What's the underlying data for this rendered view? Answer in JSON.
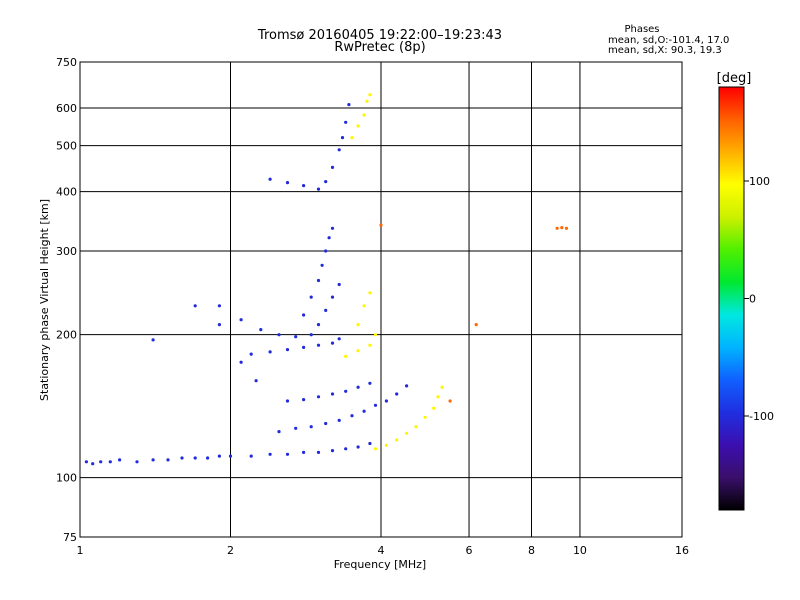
{
  "chart_data": {
    "type": "scatter",
    "title": "Tromsø 20160405 19:22:00–19:23:43",
    "subtitle": "RwPretec (8p)",
    "xlabel": "Frequency [MHz]",
    "ylabel": "Stationary phase Virtual Height [km]",
    "x_scale": "log",
    "y_scale": "log",
    "xlim": [
      1,
      16
    ],
    "ylim": [
      75,
      750
    ],
    "x_ticks": [
      1,
      2,
      4,
      6,
      8,
      10,
      16
    ],
    "y_ticks": [
      75,
      100,
      200,
      300,
      400,
      500,
      600,
      750
    ],
    "grid": true,
    "phase_info": {
      "heading": "Phases",
      "line_o": "mean, sd,O:-101.4, 17.0",
      "line_x": "mean, sd,X:  90.3, 19.3"
    },
    "colorbar": {
      "label": "[deg]",
      "range": [
        -180,
        180
      ],
      "ticks": [
        100,
        0,
        -100
      ],
      "colormap": [
        "#000000",
        "#3a0f6b",
        "#3b0fb0",
        "#1f2fe0",
        "#1060ff",
        "#00b4ff",
        "#00e8e0",
        "#00e830",
        "#50f000",
        "#ccf000",
        "#ffff00",
        "#ffb000",
        "#ff6000",
        "#ff0000"
      ]
    },
    "series": [
      {
        "trace": "o-mode",
        "phase_deg": -100,
        "points": [
          [
            1.03,
            108
          ],
          [
            1.06,
            107
          ],
          [
            1.1,
            108
          ],
          [
            1.15,
            108
          ],
          [
            1.2,
            109
          ],
          [
            1.3,
            108
          ],
          [
            1.4,
            109
          ],
          [
            1.5,
            109
          ],
          [
            1.6,
            110
          ],
          [
            1.7,
            110
          ],
          [
            1.8,
            110
          ],
          [
            1.9,
            111
          ],
          [
            2.0,
            111
          ],
          [
            2.2,
            111
          ],
          [
            2.4,
            112
          ],
          [
            2.6,
            112
          ],
          [
            2.8,
            113
          ],
          [
            3.0,
            113
          ],
          [
            3.2,
            114
          ],
          [
            3.4,
            115
          ],
          [
            3.6,
            116
          ],
          [
            3.8,
            118
          ],
          [
            2.5,
            125
          ],
          [
            2.7,
            127
          ],
          [
            2.9,
            128
          ],
          [
            3.1,
            130
          ],
          [
            3.3,
            132
          ],
          [
            3.5,
            135
          ],
          [
            3.7,
            138
          ],
          [
            3.9,
            142
          ],
          [
            4.1,
            145
          ],
          [
            4.3,
            150
          ],
          [
            4.5,
            156
          ],
          [
            2.6,
            145
          ],
          [
            2.8,
            146
          ],
          [
            3.0,
            148
          ],
          [
            3.2,
            150
          ],
          [
            3.4,
            152
          ],
          [
            3.6,
            155
          ],
          [
            3.8,
            158
          ],
          [
            2.2,
            182
          ],
          [
            2.4,
            184
          ],
          [
            2.6,
            186
          ],
          [
            2.8,
            188
          ],
          [
            3.0,
            190
          ],
          [
            3.2,
            192
          ],
          [
            3.3,
            196
          ],
          [
            1.9,
            230
          ],
          [
            2.1,
            215
          ],
          [
            2.3,
            205
          ],
          [
            2.5,
            200
          ],
          [
            2.7,
            198
          ],
          [
            2.8,
            220
          ],
          [
            2.9,
            240
          ],
          [
            3.0,
            260
          ],
          [
            3.05,
            280
          ],
          [
            3.1,
            300
          ],
          [
            3.15,
            320
          ],
          [
            3.2,
            335
          ],
          [
            2.9,
            200
          ],
          [
            3.0,
            210
          ],
          [
            3.1,
            225
          ],
          [
            3.2,
            240
          ],
          [
            3.3,
            255
          ],
          [
            2.4,
            425
          ],
          [
            2.6,
            418
          ],
          [
            2.8,
            412
          ],
          [
            3.0,
            405
          ],
          [
            3.1,
            420
          ],
          [
            3.2,
            450
          ],
          [
            3.3,
            490
          ],
          [
            3.35,
            520
          ],
          [
            3.4,
            560
          ],
          [
            3.45,
            610
          ],
          [
            1.4,
            195
          ],
          [
            1.7,
            230
          ],
          [
            1.9,
            210
          ],
          [
            2.1,
            175
          ],
          [
            2.25,
            160
          ]
        ]
      },
      {
        "trace": "x-mode",
        "phase_deg": 100,
        "points": [
          [
            3.9,
            115
          ],
          [
            4.1,
            117
          ],
          [
            4.3,
            120
          ],
          [
            4.5,
            124
          ],
          [
            4.7,
            128
          ],
          [
            4.9,
            134
          ],
          [
            5.1,
            140
          ],
          [
            5.2,
            148
          ],
          [
            5.3,
            155
          ],
          [
            3.4,
            180
          ],
          [
            3.6,
            185
          ],
          [
            3.8,
            190
          ],
          [
            3.9,
            200
          ],
          [
            3.6,
            210
          ],
          [
            3.7,
            230
          ],
          [
            3.8,
            245
          ],
          [
            3.5,
            520
          ],
          [
            3.6,
            550
          ],
          [
            3.7,
            580
          ],
          [
            3.75,
            620
          ],
          [
            3.8,
            640
          ]
        ]
      },
      {
        "trace": "isolated",
        "phase_deg": 150,
        "points": [
          [
            9.0,
            335
          ],
          [
            9.2,
            336
          ],
          [
            9.4,
            335
          ],
          [
            6.2,
            210
          ],
          [
            5.5,
            145
          ],
          [
            4.0,
            340
          ]
        ]
      }
    ]
  }
}
